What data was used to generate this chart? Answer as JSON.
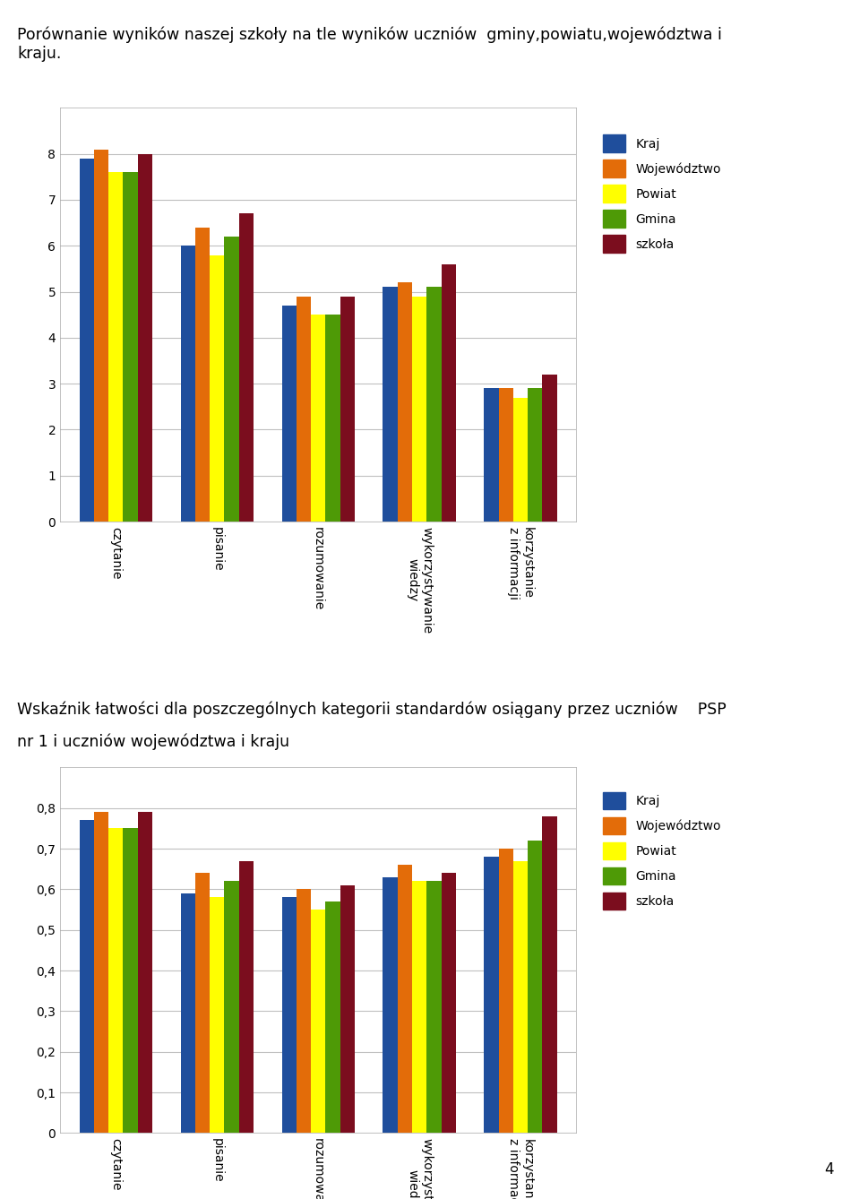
{
  "title1": "Porównanie wyników naszej szkoły na tle wyników uczniów  gminy,powiatu,województwa i\nkraju.",
  "title2_line1": "Wskaźnik łatwości dla poszczególnych kategorii standardów osiągany przez uczniów    PSP",
  "title2_line2": "nr 1 i uczniów województwa i kraju",
  "categories": [
    "czytanie",
    "pisanie",
    "rozumowanie",
    "wykorzystywanie\nwiedzy",
    "korzystanie\nz informacji"
  ],
  "series_names": [
    "Kraj",
    "Województwo",
    "Powiat",
    "Gmina",
    "szkoła"
  ],
  "colors": [
    "#1f4e9c",
    "#e36c09",
    "#ffff00",
    "#4e9a06",
    "#7b0d1e"
  ],
  "chart1_data": [
    [
      7.9,
      6.0,
      4.7,
      5.1,
      2.9
    ],
    [
      8.1,
      6.4,
      4.9,
      5.2,
      2.9
    ],
    [
      7.6,
      5.8,
      4.5,
      4.9,
      2.7
    ],
    [
      7.6,
      6.2,
      4.5,
      5.1,
      2.9
    ],
    [
      8.0,
      6.7,
      4.9,
      5.6,
      3.2
    ]
  ],
  "chart1_ylim": [
    0,
    9
  ],
  "chart1_yticks": [
    0,
    1,
    2,
    3,
    4,
    5,
    6,
    7,
    8
  ],
  "chart2_data": [
    [
      0.77,
      0.59,
      0.58,
      0.63,
      0.68
    ],
    [
      0.79,
      0.64,
      0.6,
      0.66,
      0.7
    ],
    [
      0.75,
      0.58,
      0.55,
      0.62,
      0.67
    ],
    [
      0.75,
      0.62,
      0.57,
      0.62,
      0.72
    ],
    [
      0.79,
      0.67,
      0.61,
      0.64,
      0.78
    ]
  ],
  "chart2_ylim": [
    0,
    0.9
  ],
  "chart2_yticks": [
    0,
    0.1,
    0.2,
    0.3,
    0.4,
    0.5,
    0.6,
    0.7,
    0.8
  ],
  "page_number": "4",
  "background_color": "#ffffff",
  "chart_bg_color": "#ffffff",
  "grid_color": "#c0c0c0"
}
